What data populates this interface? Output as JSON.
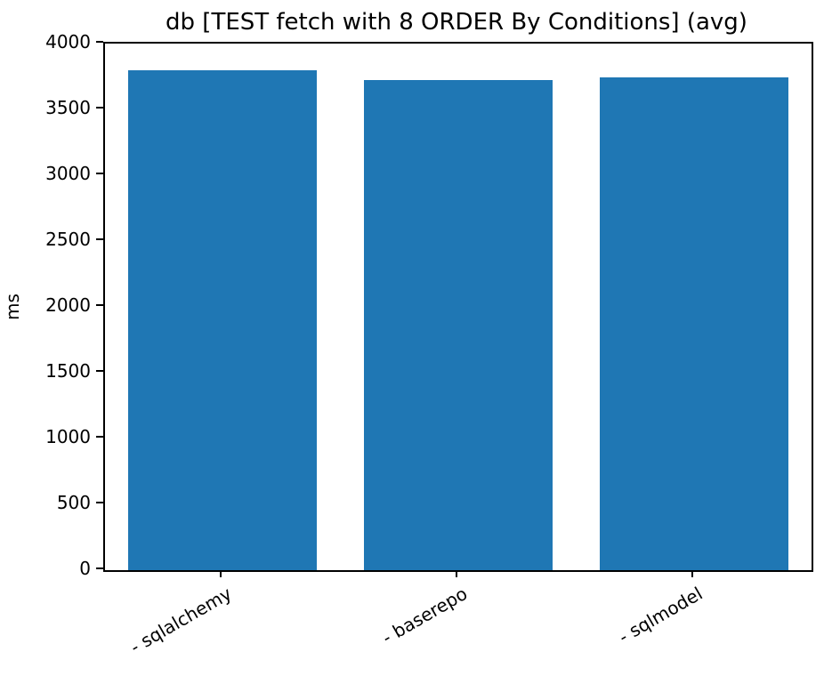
{
  "chart_data": {
    "type": "bar",
    "title": "db [TEST fetch with 8 ORDER By Conditions] (avg)",
    "xlabel": "",
    "ylabel": "ms",
    "categories": [
      "- sqlalchemy",
      "- baserepo",
      "- sqlmodel"
    ],
    "values": [
      3800,
      3725,
      3745
    ],
    "ylim": [
      0,
      4000
    ],
    "yticks": [
      0,
      500,
      1000,
      1500,
      2000,
      2500,
      3000,
      3500,
      4000
    ],
    "bar_color": "#1f77b4",
    "axis_color": "#000000",
    "background_color": "#ffffff",
    "x_tick_rotation_deg": 30,
    "grid": false,
    "legend_position": "none"
  }
}
